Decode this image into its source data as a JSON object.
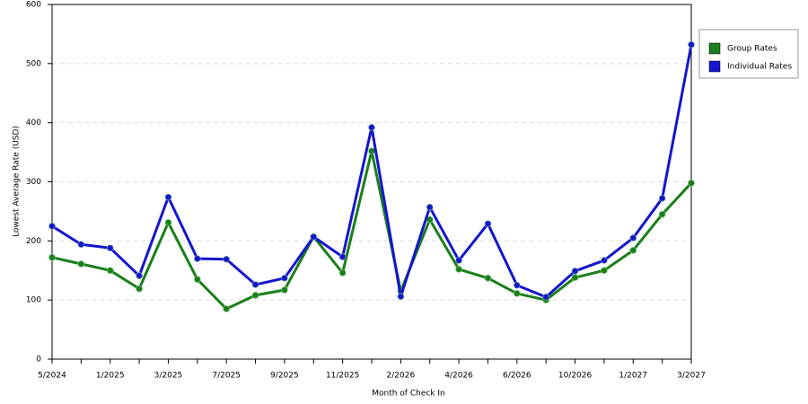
{
  "chart_data": {
    "type": "line",
    "xlabel": "Month of Check In",
    "ylabel": "Lowest Average Rate (USD)",
    "categories": [
      "5/2024",
      null,
      "1/2025",
      null,
      "3/2025",
      null,
      "7/2025",
      null,
      "9/2025",
      null,
      "11/2025",
      null,
      "2/2026",
      null,
      "4/2026",
      null,
      "6/2026",
      null,
      "10/2026",
      null,
      "1/2027",
      null,
      "3/2027"
    ],
    "series": [
      {
        "name": "Group Rates",
        "color": "#1a7f1a",
        "values": [
          172,
          161,
          150,
          119,
          231,
          135,
          85,
          108,
          117,
          207,
          146,
          352,
          115,
          236,
          152,
          137,
          111,
          100,
          138,
          150,
          184,
          245,
          298
        ]
      },
      {
        "name": "Individual Rates",
        "color": "#1515d0",
        "values": [
          225,
          194,
          188,
          141,
          274,
          170,
          169,
          126,
          137,
          207,
          173,
          392,
          106,
          257,
          167,
          229,
          125,
          105,
          149,
          167,
          205,
          272,
          532
        ]
      }
    ],
    "ylim": [
      0,
      600
    ],
    "yticks": [
      0,
      100,
      200,
      300,
      400,
      500,
      600
    ],
    "grid": true,
    "legend": "right"
  }
}
